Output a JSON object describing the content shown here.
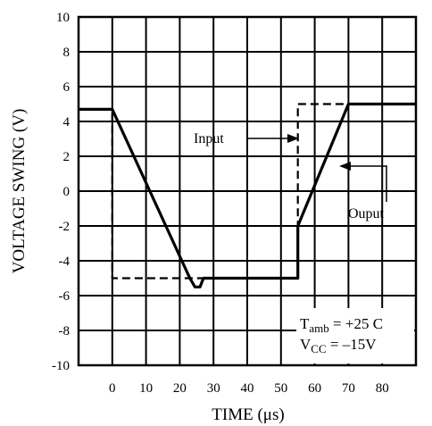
{
  "chart_data": {
    "type": "line",
    "xlabel": "TIME (μs)",
    "ylabel": "VOLTAGE SWING (V)",
    "xlim": [
      -10,
      90
    ],
    "ylim": [
      -10,
      10
    ],
    "x_ticks": [
      0,
      10,
      20,
      30,
      40,
      50,
      60,
      70,
      80
    ],
    "y_ticks": [
      10,
      8,
      6,
      4,
      2,
      0,
      -2,
      -4,
      -6,
      -8,
      -10
    ],
    "grid": true,
    "series": [
      {
        "name": "Input",
        "style": "dashed",
        "x": [
          -10,
          0,
          0,
          55,
          55,
          90
        ],
        "y": [
          4.7,
          4.7,
          -5,
          -5,
          5,
          5
        ]
      },
      {
        "name": "Ouput",
        "style": "solid",
        "x": [
          -10,
          0,
          23,
          24.5,
          26,
          27,
          55,
          55,
          70,
          90
        ],
        "y": [
          4.7,
          4.7,
          -5,
          -5.5,
          -5.5,
          -5,
          -5,
          -2,
          5,
          5
        ]
      }
    ],
    "annotations": {
      "input_label": "Input",
      "output_label": "Ouput",
      "conditions": {
        "line1_main": "T",
        "line1_sub": "amb",
        "line1_rest": " = +25  C",
        "line2_main": "V",
        "line2_sub": "CC",
        "line2_rest": " = –15V"
      }
    }
  }
}
